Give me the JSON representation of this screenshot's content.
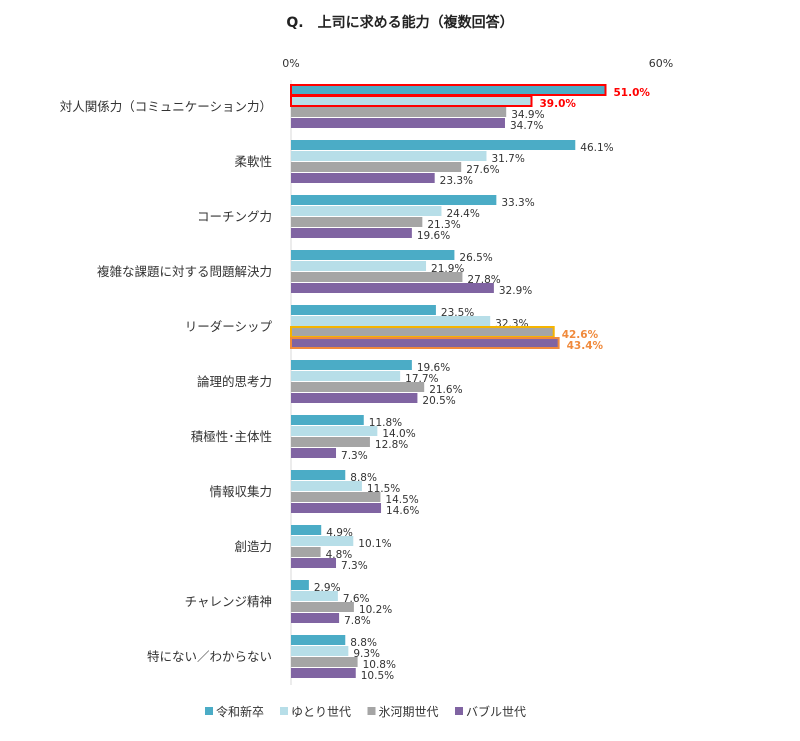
{
  "chart_data": {
    "type": "bar",
    "orientation": "horizontal",
    "title": "Q.　上司に求める能力（複数回答）",
    "xlim": [
      0,
      60
    ],
    "x_ticks": [
      "0%",
      "60%"
    ],
    "grid": false,
    "legend_position": "bottom",
    "categories": [
      "対人関係力（コミュニケーション力）",
      "柔軟性",
      "コーチング力",
      "複雑な課題に対する問題解決力",
      "リーダーシップ",
      "論理的思考力",
      "積極性･主体性",
      "情報収集力",
      "創造力",
      "チャレンジ精神",
      "特にない／わからない"
    ],
    "series": [
      {
        "name": "令和新卒",
        "color": "#4bacc6",
        "values": [
          51.0,
          46.1,
          33.3,
          26.5,
          23.5,
          19.6,
          11.8,
          8.8,
          4.9,
          2.9,
          8.8
        ]
      },
      {
        "name": "ゆとり世代",
        "color": "#b7dee8",
        "values": [
          39.0,
          31.7,
          24.4,
          21.9,
          32.3,
          17.7,
          14.0,
          11.5,
          10.1,
          7.6,
          9.3
        ]
      },
      {
        "name": "氷河期世代",
        "color": "#a5a5a5",
        "values": [
          34.9,
          27.6,
          21.3,
          27.8,
          42.6,
          21.6,
          12.8,
          14.5,
          4.8,
          10.2,
          10.8
        ]
      },
      {
        "name": "バブル世代",
        "color": "#8064a2",
        "values": [
          34.7,
          23.3,
          19.6,
          32.9,
          43.4,
          20.5,
          7.3,
          14.6,
          7.3,
          7.8,
          10.5
        ]
      }
    ],
    "highlights": [
      {
        "category": 0,
        "series": 0,
        "color": "#ff0000"
      },
      {
        "category": 0,
        "series": 1,
        "color": "#ff0000"
      },
      {
        "category": 4,
        "series": 2,
        "color": "#f5b400"
      },
      {
        "category": 4,
        "series": 3,
        "color": "#f08a3c"
      }
    ]
  }
}
